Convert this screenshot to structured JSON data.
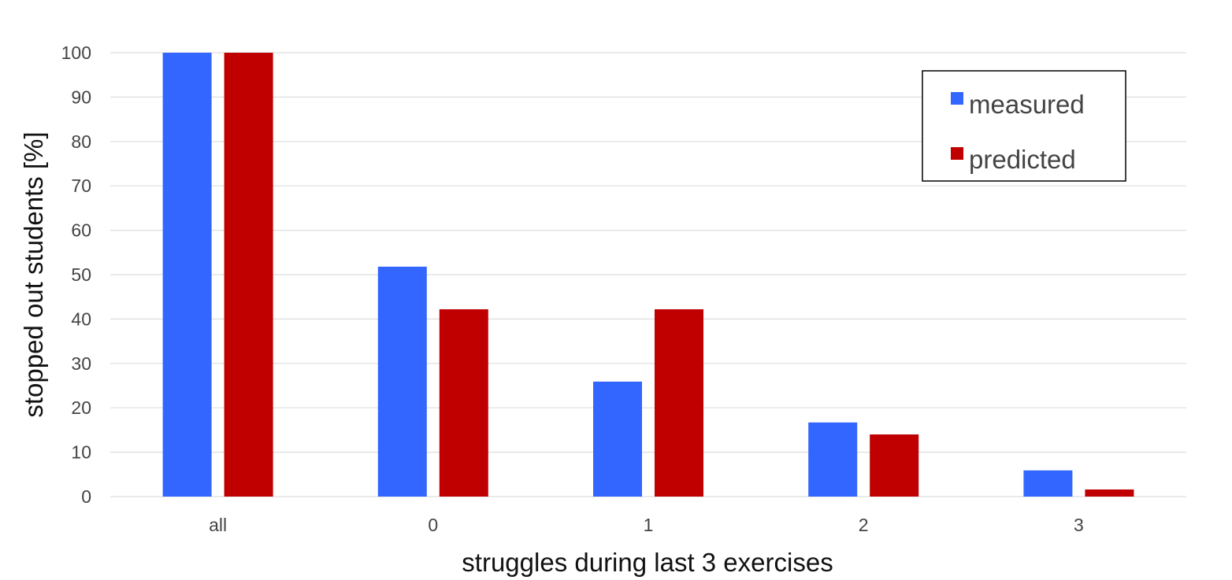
{
  "chart_data": {
    "type": "bar",
    "title": "",
    "xlabel": "struggles during last 3 exercises",
    "ylabel": "stopped out students [%]",
    "categories": [
      "all",
      "0",
      "1",
      "2",
      "3"
    ],
    "series": [
      {
        "name": "measured",
        "values": [
          100,
          51.8,
          25.9,
          16.7,
          5.9
        ],
        "color": "#3366ff"
      },
      {
        "name": "predicted",
        "values": [
          100,
          42.2,
          42.2,
          14.0,
          1.6
        ],
        "color": "#c00000"
      }
    ],
    "ylim": [
      0,
      100
    ],
    "yticks": [
      0,
      10,
      20,
      30,
      40,
      50,
      60,
      70,
      80,
      90,
      100
    ],
    "grid": true,
    "legend": {
      "position": "top-right"
    },
    "colors": {
      "grid": "#dddddd",
      "axis_text": "#444444",
      "title_text": "#111111"
    }
  }
}
